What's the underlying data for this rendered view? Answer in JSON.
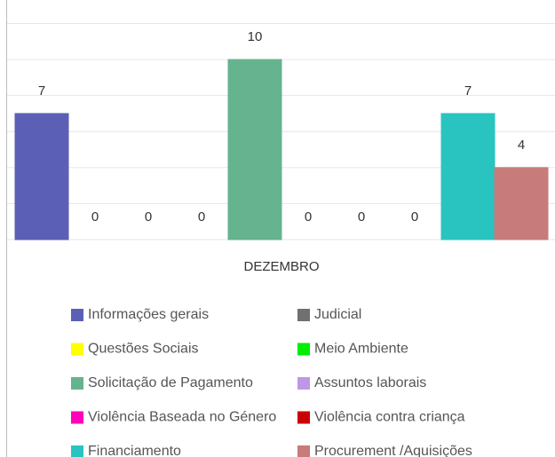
{
  "chart_data": {
    "type": "bar",
    "categories": [
      "DEZEMBRO"
    ],
    "series": [
      {
        "name": "Informações gerais",
        "color": "#5b5fb6",
        "values": [
          7
        ]
      },
      {
        "name": "Judicial",
        "color": "#707070",
        "values": [
          0
        ]
      },
      {
        "name": "Questões Sociais",
        "color": "#ffff00",
        "values": [
          0
        ]
      },
      {
        "name": "Meio Ambiente",
        "color": "#00ee00",
        "values": [
          0
        ]
      },
      {
        "name": "Solicitação de Pagamento",
        "color": "#66b38f",
        "values": [
          10
        ]
      },
      {
        "name": "Assuntos laborais",
        "color": "#bb99e6",
        "values": [
          0
        ]
      },
      {
        "name": "Violência Baseada no Género",
        "color": "#ff00bb",
        "values": [
          0
        ]
      },
      {
        "name": "Violência contra criança",
        "color": "#cc0000",
        "values": [
          0
        ]
      },
      {
        "name": "Financiamento",
        "color": "#2ac4c0",
        "values": [
          7
        ]
      },
      {
        "name": "Procurement /Aquisições",
        "color": "#c77b7b",
        "values": [
          4
        ]
      }
    ],
    "ylim": [
      0,
      12
    ],
    "yticks": [
      0,
      2,
      4,
      6,
      8,
      10,
      12
    ],
    "grid": true
  }
}
